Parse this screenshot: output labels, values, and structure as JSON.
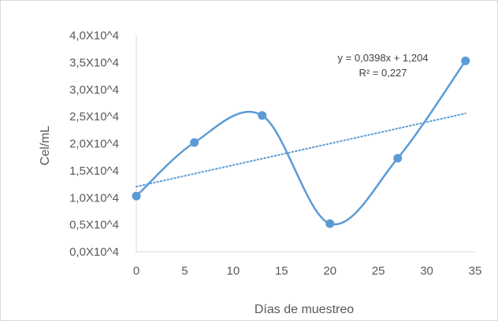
{
  "chart_data": {
    "type": "scatter",
    "title": "",
    "xlabel": "Días de muestreo",
    "ylabel": "Cel/mL",
    "xlim": [
      0,
      35
    ],
    "ylim": [
      0,
      4.0
    ],
    "x_ticks": [
      "0",
      "5",
      "10",
      "15",
      "20",
      "25",
      "30",
      "35"
    ],
    "y_ticks": [
      "0,0X10^4",
      "0,5X10^4",
      "1,0X10^4",
      "1,5X10^4",
      "2,0X10^4",
      "2,5X10^4",
      "3,0X10^4",
      "3,5X10^4",
      "4,0X10^4"
    ],
    "grid": false,
    "legend": "none",
    "series": [
      {
        "x": [
          0,
          6,
          13,
          20,
          27,
          34
        ],
        "y": [
          1.03,
          2.02,
          2.52,
          0.52,
          1.73,
          3.53
        ],
        "line": "smooth",
        "color": "#5b9bd5"
      }
    ],
    "trendline": {
      "type": "linear",
      "slope": 0.0398,
      "intercept": 1.204,
      "style": "dotted",
      "color": "#5b9bd5",
      "equation": "y = 0,0398x + 1,204",
      "r_squared": "R² = 0,227"
    }
  }
}
